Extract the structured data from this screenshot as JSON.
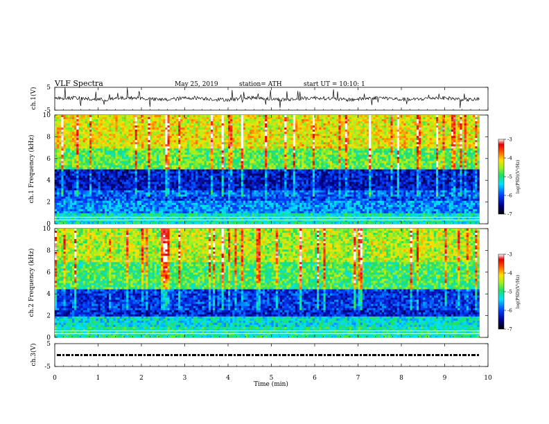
{
  "header": {
    "title": "VLF Spectra",
    "date": "May 25, 2019",
    "station": "station= ATH",
    "start": "start UT = 10:10: 1"
  },
  "chart_data": [
    {
      "type": "line",
      "panel": "ch1-waveform",
      "ylabel": "ch.1(V)",
      "ylim": [
        -5,
        5
      ],
      "yticks": [
        "5",
        "-5"
      ],
      "xlim": [
        0,
        10
      ],
      "trace_extent_min": 9.8,
      "baseline_v": 0,
      "color": "#000000"
    },
    {
      "type": "heatmap",
      "panel": "ch1-spectrogram",
      "ylabel": "ch.1 Frequency (kHz)",
      "ylim": [
        0,
        10
      ],
      "yticks": [
        "0",
        "2",
        "4",
        "6",
        "8",
        "10"
      ],
      "xlim": [
        0,
        10
      ],
      "data_extent_min": 9.8,
      "colorbar": {
        "label": "log(PSD)(V²/Hz)",
        "range": [
          -7,
          -3
        ],
        "ticks": [
          "-3",
          "-4",
          "-5",
          "-6",
          "-7"
        ]
      },
      "band_levels": [
        {
          "f_kHz": [
            0.0,
            1.0
          ],
          "logpsd": -5.2
        },
        {
          "f_kHz": [
            1.0,
            2.2
          ],
          "logpsd": -5.7
        },
        {
          "f_kHz": [
            2.2,
            3.0
          ],
          "logpsd": -6.0
        },
        {
          "f_kHz": [
            3.0,
            5.0
          ],
          "logpsd": -6.4
        },
        {
          "f_kHz": [
            5.0,
            7.0
          ],
          "logpsd": -4.9
        },
        {
          "f_kHz": [
            7.0,
            10.0
          ],
          "logpsd": -4.4
        }
      ]
    },
    {
      "type": "heatmap",
      "panel": "ch2-spectrogram",
      "ylabel": "ch.2 Frequency (kHz)",
      "ylim": [
        0,
        10
      ],
      "yticks": [
        "0",
        "2",
        "4",
        "6",
        "8",
        "10"
      ],
      "xlim": [
        0,
        10
      ],
      "data_extent_min": 9.8,
      "colorbar": {
        "label": "log(PSD)(V²/Hz)",
        "range": [
          -7,
          -3
        ],
        "ticks": [
          "-3",
          "-4",
          "-5",
          "-6",
          "-7"
        ]
      },
      "band_levels": [
        {
          "f_kHz": [
            0.0,
            1.0
          ],
          "logpsd": -5.1
        },
        {
          "f_kHz": [
            1.0,
            2.0
          ],
          "logpsd": -5.3
        },
        {
          "f_kHz": [
            2.0,
            4.5
          ],
          "logpsd": -6.2
        },
        {
          "f_kHz": [
            4.5,
            7.0
          ],
          "logpsd": -5.0
        },
        {
          "f_kHz": [
            7.0,
            10.0
          ],
          "logpsd": -4.6
        }
      ]
    },
    {
      "type": "line",
      "panel": "ch3-signal",
      "ylabel": "ch.3(V)",
      "ylim": [
        -5,
        5
      ],
      "yticks": [
        "5",
        "-5"
      ],
      "xlim": [
        0,
        10
      ],
      "trace_extent_min": 9.8,
      "level_v": 0,
      "style": "dashed",
      "color": "#000000"
    }
  ],
  "xaxis": {
    "label": "Time (min)",
    "ticks": [
      "0",
      "1",
      "2",
      "3",
      "4",
      "5",
      "6",
      "7",
      "8",
      "9",
      "10"
    ],
    "range": [
      0,
      10
    ]
  }
}
